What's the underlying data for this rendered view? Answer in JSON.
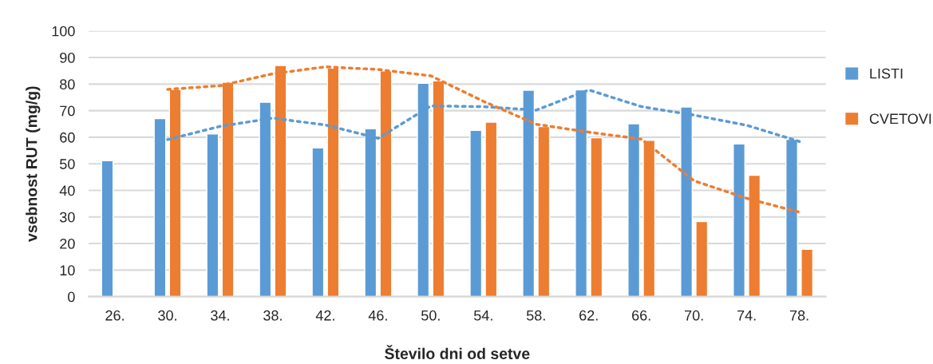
{
  "chart_data": {
    "type": "bar",
    "xlabel": "Število dni od setve",
    "ylabel": "vsebnost RUT (mg/g)",
    "categories": [
      "26.",
      "30.",
      "34.",
      "38.",
      "42.",
      "46.",
      "50.",
      "54.",
      "58.",
      "62.",
      "66.",
      "70.",
      "74.",
      "78."
    ],
    "series": [
      {
        "name": "LISTI",
        "color": "#5b9bd5",
        "values": [
          51.2,
          67,
          61.2,
          73.2,
          56,
          63.2,
          80.3,
          62.6,
          77.7,
          77.8,
          65.1,
          71.4,
          57.5,
          59.2
        ]
      },
      {
        "name": "CVETOVI",
        "color": "#ed7d31",
        "values": [
          null,
          78,
          80.7,
          87,
          86,
          85,
          81.2,
          65.7,
          64,
          59.8,
          58.8,
          28.3,
          45.7,
          17.8
        ]
      },
      {
        "type": "line",
        "line_style": "dotted",
        "color": "#5b9bd5",
        "values": [
          null,
          59.1,
          64.1,
          67.2,
          64.6,
          59.6,
          71.8,
          71.5,
          70.2,
          77.8,
          71.5,
          68.3,
          64.5,
          58.4
        ]
      },
      {
        "type": "line",
        "line_style": "dotted",
        "color": "#ed7d31",
        "values": [
          null,
          78,
          79.4,
          83.9,
          86.5,
          85.5,
          83.1,
          73.5,
          64.9,
          61.9,
          59.3,
          43.6,
          37,
          31.8
        ]
      }
    ],
    "ylim": [
      0,
      100
    ],
    "yticks": [
      0,
      10,
      20,
      30,
      40,
      50,
      60,
      70,
      80,
      90,
      100
    ],
    "grid": "y",
    "legend": "right"
  }
}
